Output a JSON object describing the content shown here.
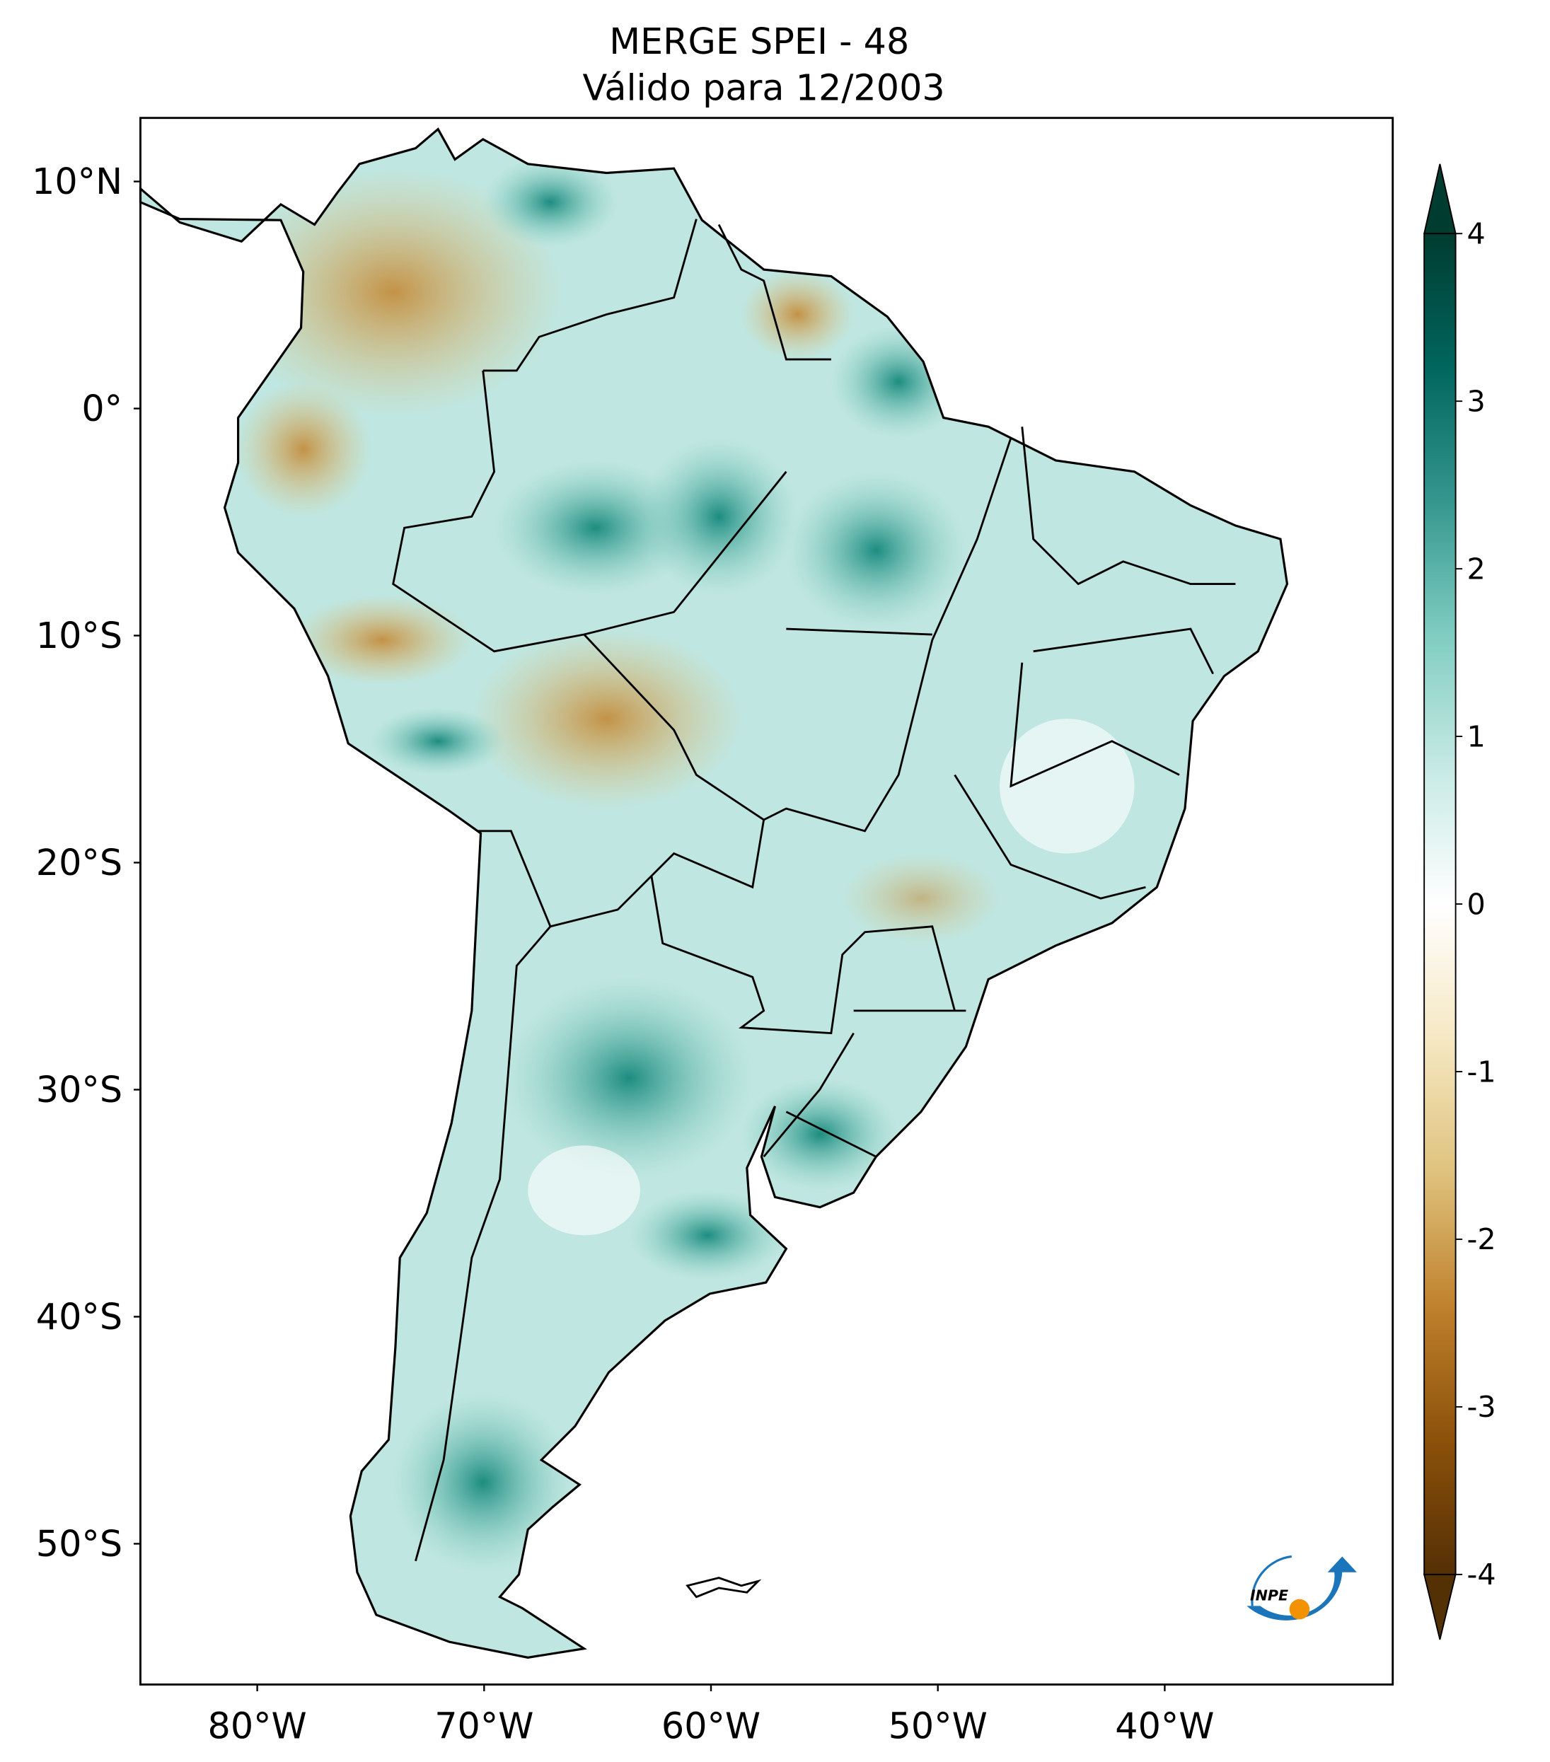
{
  "title": [
    "MERGE   SPEI - 48",
    "Válido para 12/2003"
  ],
  "map": {
    "lon_range": [
      -85.15,
      -29.95
    ],
    "lat_range": [
      -56.2,
      12.8
    ],
    "lon_ticks": [
      {
        "value": -80,
        "label": "80°W"
      },
      {
        "value": -70,
        "label": "70°W"
      },
      {
        "value": -60,
        "label": "60°W"
      },
      {
        "value": -50,
        "label": "50°W"
      },
      {
        "value": -40,
        "label": "40°W"
      }
    ],
    "lat_ticks": [
      {
        "value": 10,
        "label": "10°N"
      },
      {
        "value": 0,
        "label": "0°"
      },
      {
        "value": -10,
        "label": "10°S"
      },
      {
        "value": -20,
        "label": "20°S"
      },
      {
        "value": -30,
        "label": "30°S"
      },
      {
        "value": -40,
        "label": "40°S"
      },
      {
        "value": -50,
        "label": "50°S"
      }
    ]
  },
  "colorbar": {
    "range": [
      -4,
      4
    ],
    "ticks": [
      4,
      3,
      2,
      1,
      0,
      -1,
      -2,
      -3,
      -4
    ],
    "colors": [
      "#543005",
      "#8c510a",
      "#bf812d",
      "#dfc27d",
      "#f6e8c3",
      "#ffffff",
      "#c7eae5",
      "#80cdc1",
      "#35978f",
      "#01665e",
      "#003c30"
    ]
  },
  "logo": "INPE"
}
